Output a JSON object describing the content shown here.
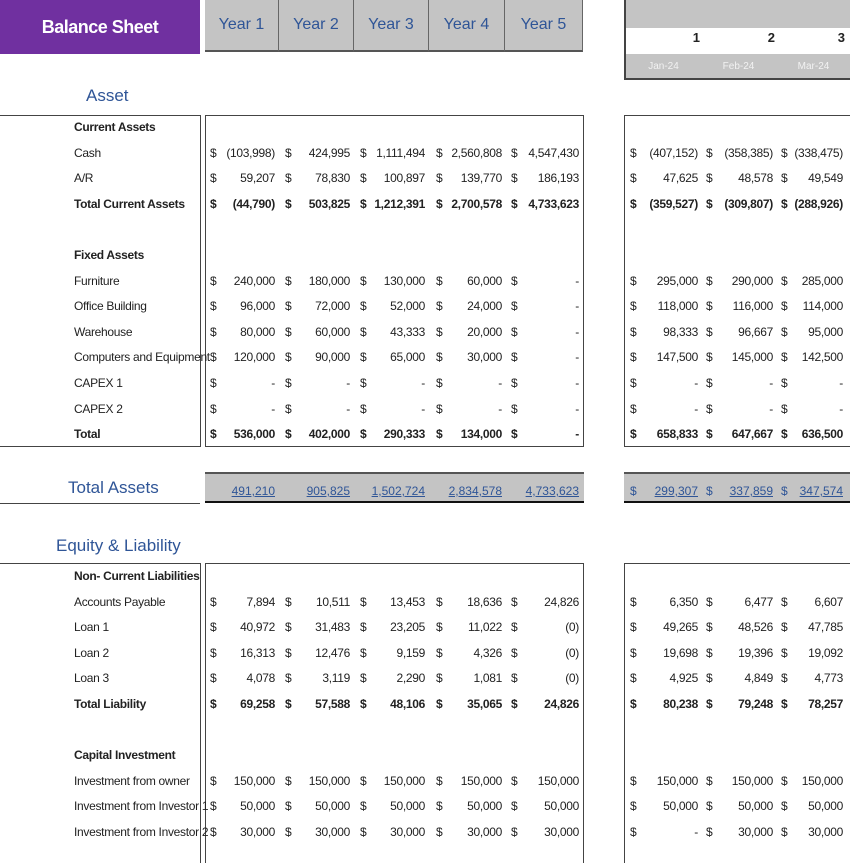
{
  "header": {
    "title": "Balance Sheet",
    "years": [
      "Year 1",
      "Year 2",
      "Year 3",
      "Year 4",
      "Year 5"
    ],
    "month_numbers": [
      "1",
      "2",
      "3"
    ],
    "month_dates": [
      "Jan-24",
      "Feb-24",
      "Mar-24"
    ]
  },
  "sections": {
    "asset": "Asset",
    "total_assets": "Total Assets",
    "equity_liability": "Equity & Liability"
  },
  "currency_symbol": "$",
  "total_assets": {
    "years": [
      "491,210",
      "905,825",
      "1,502,724",
      "2,834,578",
      "4,733,623"
    ],
    "months": [
      "299,307",
      "337,859",
      "347,574"
    ]
  },
  "asset_rows": [
    {
      "label": "Current Assets",
      "type": "heading"
    },
    {
      "label": "Cash",
      "years": [
        "(103,998)",
        "424,995",
        "1,111,494",
        "2,560,808",
        "4,547,430"
      ],
      "months": [
        "(407,152)",
        "(358,385)",
        "(338,475)"
      ]
    },
    {
      "label": "A/R",
      "years": [
        "59,207",
        "78,830",
        "100,897",
        "139,770",
        "186,193"
      ],
      "months": [
        "47,625",
        "48,578",
        "49,549"
      ]
    },
    {
      "label": "Total Current Assets",
      "type": "total",
      "years": [
        "(44,790)",
        "503,825",
        "1,212,391",
        "2,700,578",
        "4,733,623"
      ],
      "months": [
        "(359,527)",
        "(309,807)",
        "(288,926)"
      ]
    },
    {
      "type": "blank"
    },
    {
      "label": "Fixed Assets",
      "type": "heading"
    },
    {
      "label": "Furniture",
      "years": [
        "240,000",
        "180,000",
        "130,000",
        "60,000",
        "-"
      ],
      "months": [
        "295,000",
        "290,000",
        "285,000"
      ]
    },
    {
      "label": "Office Building",
      "years": [
        "96,000",
        "72,000",
        "52,000",
        "24,000",
        "-"
      ],
      "months": [
        "118,000",
        "116,000",
        "114,000"
      ]
    },
    {
      "label": "Warehouse",
      "years": [
        "80,000",
        "60,000",
        "43,333",
        "20,000",
        "-"
      ],
      "months": [
        "98,333",
        "96,667",
        "95,000"
      ]
    },
    {
      "label": "Computers and Equipment",
      "years": [
        "120,000",
        "90,000",
        "65,000",
        "30,000",
        "-"
      ],
      "months": [
        "147,500",
        "145,000",
        "142,500"
      ]
    },
    {
      "label": "CAPEX 1",
      "years": [
        "-",
        "-",
        "-",
        "-",
        "-"
      ],
      "months": [
        "-",
        "-",
        "-"
      ]
    },
    {
      "label": "CAPEX 2",
      "years": [
        "-",
        "-",
        "-",
        "-",
        "-"
      ],
      "months": [
        "-",
        "-",
        "-"
      ]
    },
    {
      "label": "Total",
      "type": "total",
      "years": [
        "536,000",
        "402,000",
        "290,333",
        "134,000",
        "-"
      ],
      "months": [
        "658,833",
        "647,667",
        "636,500"
      ]
    }
  ],
  "liability_rows": [
    {
      "label": "Non- Current Liabilities",
      "type": "heading"
    },
    {
      "label": "Accounts Payable",
      "years": [
        "7,894",
        "10,511",
        "13,453",
        "18,636",
        "24,826"
      ],
      "months": [
        "6,350",
        "6,477",
        "6,607"
      ]
    },
    {
      "label": "Loan 1",
      "years": [
        "40,972",
        "31,483",
        "23,205",
        "11,022",
        "(0)"
      ],
      "months": [
        "49,265",
        "48,526",
        "47,785"
      ]
    },
    {
      "label": "Loan 2",
      "years": [
        "16,313",
        "12,476",
        "9,159",
        "4,326",
        "(0)"
      ],
      "months": [
        "19,698",
        "19,396",
        "19,092"
      ]
    },
    {
      "label": "Loan 3",
      "years": [
        "4,078",
        "3,119",
        "2,290",
        "1,081",
        "(0)"
      ],
      "months": [
        "4,925",
        "4,849",
        "4,773"
      ]
    },
    {
      "label": "Total Liability",
      "type": "total",
      "years": [
        "69,258",
        "57,588",
        "48,106",
        "35,065",
        "24,826"
      ],
      "months": [
        "80,238",
        "79,248",
        "78,257"
      ]
    },
    {
      "type": "blank"
    },
    {
      "label": "Capital Investment",
      "type": "heading"
    },
    {
      "label": "Investment from owner",
      "years": [
        "150,000",
        "150,000",
        "150,000",
        "150,000",
        "150,000"
      ],
      "months": [
        "150,000",
        "150,000",
        "150,000"
      ]
    },
    {
      "label": "Investment from Investor 1",
      "years": [
        "50,000",
        "50,000",
        "50,000",
        "50,000",
        "50,000"
      ],
      "months": [
        "50,000",
        "50,000",
        "50,000"
      ]
    },
    {
      "label": "Investment from Investor 2",
      "years": [
        "30,000",
        "30,000",
        "30,000",
        "30,000",
        "30,000"
      ],
      "months": [
        "-",
        "30,000",
        "30,000"
      ]
    }
  ]
}
